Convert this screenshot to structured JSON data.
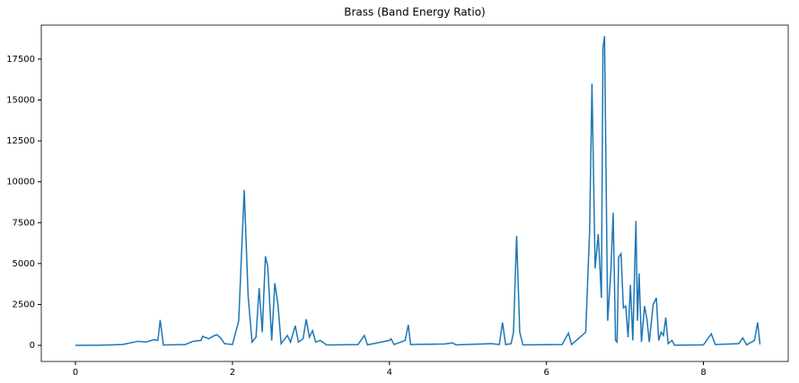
{
  "chart_data": {
    "type": "line",
    "title": "Brass (Band Energy Ratio)",
    "x": [
      0,
      0.3,
      0.6,
      0.8,
      0.9,
      1.0,
      1.05,
      1.08,
      1.12,
      1.4,
      1.5,
      1.6,
      1.62,
      1.7,
      1.75,
      1.8,
      1.85,
      1.9,
      2.0,
      2.08,
      2.15,
      2.2,
      2.25,
      2.3,
      2.34,
      2.38,
      2.42,
      2.45,
      2.5,
      2.54,
      2.58,
      2.62,
      2.7,
      2.74,
      2.8,
      2.84,
      2.9,
      2.94,
      2.98,
      3.02,
      3.06,
      3.12,
      3.2,
      3.6,
      3.68,
      3.72,
      4.0,
      4.02,
      4.06,
      4.2,
      4.24,
      4.27,
      4.7,
      4.8,
      4.85,
      5.3,
      5.4,
      5.44,
      5.48,
      5.55,
      5.58,
      5.62,
      5.66,
      5.7,
      6.2,
      6.28,
      6.32,
      6.5,
      6.55,
      6.58,
      6.62,
      6.66,
      6.7,
      6.72,
      6.74,
      6.78,
      6.82,
      6.85,
      6.88,
      6.9,
      6.92,
      6.95,
      6.98,
      7.01,
      7.04,
      7.07,
      7.1,
      7.14,
      7.16,
      7.18,
      7.21,
      7.25,
      7.28,
      7.31,
      7.36,
      7.4,
      7.43,
      7.46,
      7.49,
      7.52,
      7.55,
      7.6,
      7.63,
      8.0,
      8.1,
      8.15,
      8.45,
      8.5,
      8.55,
      8.65,
      8.69,
      8.72
    ],
    "series": [
      {
        "color": "#1f77b4",
        "values": [
          0,
          10,
          50,
          250,
          200,
          350,
          300,
          1550,
          20,
          50,
          250,
          300,
          550,
          400,
          550,
          650,
          450,
          100,
          50,
          1500,
          9500,
          3000,
          200,
          500,
          3500,
          800,
          5450,
          4800,
          300,
          3800,
          2500,
          100,
          600,
          200,
          1200,
          200,
          400,
          1600,
          500,
          900,
          200,
          300,
          20,
          50,
          600,
          30,
          300,
          400,
          50,
          300,
          1250,
          50,
          80,
          150,
          30,
          100,
          50,
          1400,
          50,
          100,
          800,
          6700,
          800,
          30,
          50,
          750,
          50,
          800,
          7000,
          16000,
          4700,
          6800,
          2900,
          18200,
          18900,
          1500,
          4500,
          8100,
          300,
          200,
          5400,
          5600,
          2300,
          2400,
          500,
          3700,
          300,
          7600,
          1500,
          4400,
          200,
          2400,
          1600,
          200,
          2500,
          2900,
          300,
          800,
          600,
          1700,
          100,
          300,
          10,
          30,
          700,
          50,
          100,
          450,
          30,
          300,
          1400,
          50
        ]
      }
    ],
    "xlim": [
      -0.435,
      9.08
    ],
    "ylim": [
      -987,
      19580
    ],
    "xticks": [
      0,
      2,
      4,
      6,
      8
    ],
    "yticks": [
      0,
      2500,
      5000,
      7500,
      10000,
      12500,
      15000,
      17500
    ]
  }
}
